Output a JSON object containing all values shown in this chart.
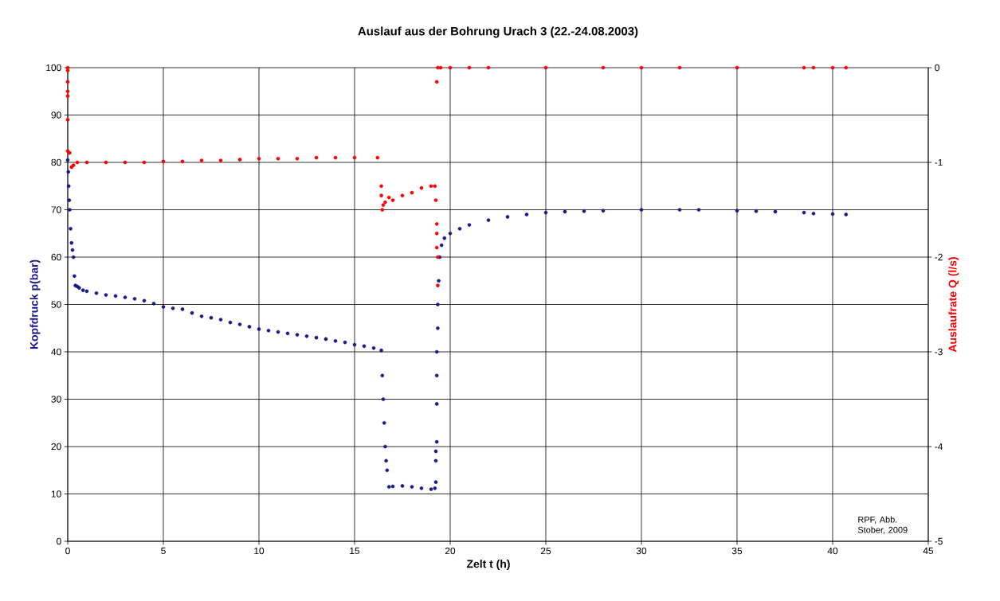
{
  "chart_data": {
    "type": "scatter",
    "title": "Auslauf aus der Bohrung Urach 3 (22.-24.08.2003)",
    "xlabel": "Zelt t (h)",
    "ylabel": "Kopfdruck p(bar)",
    "y2label": "Auslaufrate Q (l/s)",
    "xlim": [
      0,
      45
    ],
    "xticks": [
      0,
      5,
      10,
      15,
      20,
      25,
      30,
      35,
      40,
      45
    ],
    "ylim": [
      0,
      100
    ],
    "yticks": [
      0,
      10,
      20,
      30,
      40,
      50,
      60,
      70,
      80,
      90,
      100
    ],
    "y2lim": [
      -5,
      0
    ],
    "y2ticks": [
      -5,
      -4,
      -3,
      -2,
      -1,
      0
    ],
    "grid": true,
    "annotations": [
      "RPF, Abb. Stober, 2009"
    ],
    "series": [
      {
        "color": "#1a1a8c",
        "x": [
          0,
          0.03,
          0.05,
          0.08,
          0.1,
          0.15,
          0.2,
          0.25,
          0.3,
          0.35,
          0.4,
          0.5,
          0.6,
          0.8,
          1,
          1.5,
          2,
          2.5,
          3,
          3.5,
          4,
          4.5,
          5,
          5.5,
          6,
          6.5,
          7,
          7.5,
          8,
          8.5,
          9,
          9.5,
          10,
          10.5,
          11,
          11.5,
          12,
          12.5,
          13,
          13.5,
          14,
          14.5,
          15,
          15.5,
          16,
          16.4,
          16.45,
          16.5,
          16.55,
          16.6,
          16.65,
          16.7,
          16.8,
          17,
          17.5,
          18,
          18.5,
          19,
          19.2,
          19.25,
          19.25,
          19.25,
          19.3,
          19.3,
          19.3,
          19.3,
          19.35,
          19.35,
          19.4,
          19.45,
          19.55,
          19.7,
          20,
          20.5,
          21,
          22,
          23,
          24,
          25,
          26,
          27,
          28,
          30,
          32,
          33,
          35,
          36,
          37,
          38.5,
          39,
          40,
          40.7
        ],
        "values": [
          80.5,
          78,
          75,
          72,
          70,
          66,
          63,
          61.5,
          60,
          56,
          54,
          53.8,
          53.5,
          53,
          52.8,
          52.4,
          52,
          51.8,
          51.5,
          51.2,
          50.8,
          50.2,
          49.5,
          49.2,
          49,
          48.2,
          47.5,
          47.2,
          46.8,
          46.2,
          45.8,
          45.3,
          44.8,
          44.5,
          44.2,
          43.9,
          43.6,
          43.3,
          43,
          42.7,
          42.3,
          42,
          41.5,
          41.2,
          40.8,
          40.3,
          35,
          30,
          25,
          20,
          17,
          15,
          11.5,
          11.6,
          11.7,
          11.5,
          11.2,
          11,
          11.2,
          12.5,
          17,
          19,
          21,
          29,
          35,
          40,
          45,
          50,
          55,
          60,
          62.5,
          64,
          65,
          66,
          66.8,
          67.8,
          68.5,
          69,
          69.4,
          69.6,
          69.7,
          69.8,
          70,
          70,
          70,
          69.8,
          69.7,
          69.6,
          69.4,
          69.2,
          69.1,
          69
        ]
      },
      {
        "color": "#ff0000",
        "axis": "y2",
        "x": [
          0,
          0,
          0,
          0,
          0,
          0,
          0,
          0.1,
          0.2,
          0.3,
          0.5,
          1,
          2,
          3,
          4,
          5,
          6,
          7,
          8,
          9,
          10,
          11,
          12,
          13,
          14,
          15,
          16.2,
          16.4,
          16.4,
          16.45,
          16.5,
          16.6,
          16.8,
          17,
          17.5,
          18,
          18.5,
          19,
          19.2,
          19.25,
          19.3,
          19.3,
          19.3,
          19.35,
          19.35,
          19.3,
          19.35,
          19.5,
          20,
          21,
          22,
          25,
          28,
          30,
          32,
          35,
          38.5,
          39,
          40,
          40.7
        ],
        "values": [
          0,
          -0.03,
          -0.15,
          -0.25,
          -0.3,
          -0.55,
          -0.88,
          -0.9,
          -1.05,
          -1.03,
          -1,
          -1,
          -1,
          -1,
          -1,
          -0.99,
          -0.99,
          -0.98,
          -0.98,
          -0.97,
          -0.96,
          -0.96,
          -0.96,
          -0.95,
          -0.95,
          -0.95,
          -0.95,
          -1.25,
          -1.35,
          -1.5,
          -1.45,
          -1.42,
          -1.37,
          -1.4,
          -1.35,
          -1.32,
          -1.27,
          -1.25,
          -1.25,
          -1.4,
          -1.65,
          -1.75,
          -1.9,
          -2,
          -2.3,
          -0.15,
          0,
          0,
          0,
          0,
          0,
          0,
          0,
          0,
          0,
          0,
          0,
          0,
          0,
          0
        ]
      }
    ]
  }
}
